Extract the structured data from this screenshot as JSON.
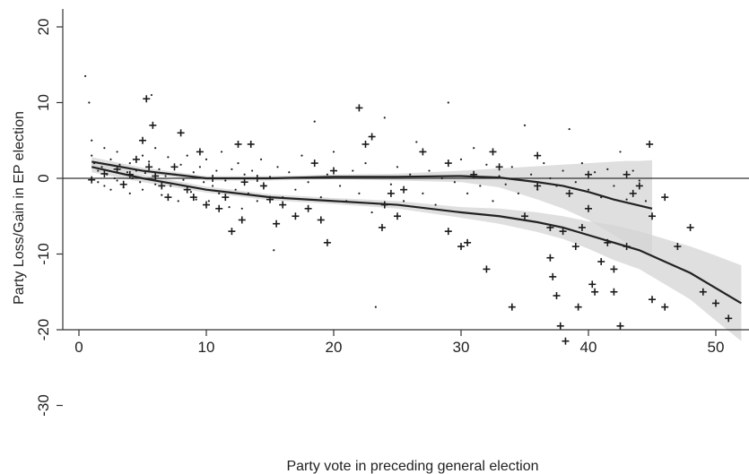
{
  "chart_data": {
    "type": "scatter",
    "title": "",
    "xlabel": "Party vote in preceding general election",
    "ylabel": "Party Loss/Gain in EP election",
    "xlim": [
      -1,
      52
    ],
    "ylim": [
      -32,
      22
    ],
    "xticks": [
      0,
      10,
      20,
      30,
      40,
      50
    ],
    "yticks": [
      20,
      10,
      0,
      -10,
      -20,
      -30
    ],
    "reference_line_y": 0,
    "grid": false,
    "legend": "none",
    "series": [
      {
        "marker": "plus",
        "points": [
          [
            1,
            -0.2
          ],
          [
            2,
            0.6
          ],
          [
            3,
            1.2
          ],
          [
            3.5,
            -0.8
          ],
          [
            4,
            0.5
          ],
          [
            4.5,
            2.5
          ],
          [
            5,
            5
          ],
          [
            5.3,
            10.5
          ],
          [
            5.5,
            1.5
          ],
          [
            5.8,
            7
          ],
          [
            6,
            0.3
          ],
          [
            6.5,
            -1
          ],
          [
            7,
            -2.5
          ],
          [
            7.5,
            1.5
          ],
          [
            8,
            6
          ],
          [
            8.5,
            -1.5
          ],
          [
            9,
            -2.5
          ],
          [
            9.5,
            3.5
          ],
          [
            10,
            -3.5
          ],
          [
            10.5,
            0
          ],
          [
            11,
            -4
          ],
          [
            11.5,
            -2.5
          ],
          [
            12,
            -7
          ],
          [
            12.5,
            4.5
          ],
          [
            12.8,
            -5.5
          ],
          [
            13,
            -0.5
          ],
          [
            13.5,
            4.5
          ],
          [
            14,
            0
          ],
          [
            14.5,
            -1
          ],
          [
            15,
            -2.8
          ],
          [
            15.5,
            -6
          ],
          [
            16,
            -3.5
          ],
          [
            17,
            -5
          ],
          [
            18,
            -4
          ],
          [
            18.5,
            2
          ],
          [
            19,
            -5.5
          ],
          [
            19.5,
            -8.5
          ],
          [
            20,
            1
          ],
          [
            22,
            9.3
          ],
          [
            22.5,
            4.5
          ],
          [
            23,
            5.5
          ],
          [
            23.8,
            -6.5
          ],
          [
            24,
            -3.5
          ],
          [
            24.5,
            -2
          ],
          [
            25,
            -5
          ],
          [
            25.5,
            -1.5
          ],
          [
            27,
            3.5
          ],
          [
            29,
            2
          ],
          [
            29,
            -7
          ],
          [
            30,
            -9
          ],
          [
            30.5,
            -8.5
          ],
          [
            31,
            0.5
          ],
          [
            32,
            -12
          ],
          [
            32.5,
            3.5
          ],
          [
            33,
            1.5
          ],
          [
            34,
            -17
          ],
          [
            35,
            -5
          ],
          [
            36,
            3
          ],
          [
            36,
            -1
          ],
          [
            37,
            -6.5
          ],
          [
            37,
            -10.5
          ],
          [
            37.2,
            -13
          ],
          [
            37.5,
            -15.5
          ],
          [
            37.8,
            -19.5
          ],
          [
            38,
            -7
          ],
          [
            38.2,
            -21.5
          ],
          [
            38.5,
            -2
          ],
          [
            39,
            -9
          ],
          [
            39.2,
            -17
          ],
          [
            39.5,
            -6.5
          ],
          [
            40,
            0.5
          ],
          [
            40,
            -4
          ],
          [
            40.3,
            -14
          ],
          [
            40.5,
            -15
          ],
          [
            41,
            -11
          ],
          [
            41.5,
            -8.5
          ],
          [
            42,
            -12
          ],
          [
            42,
            -15
          ],
          [
            42.5,
            -19.5
          ],
          [
            43,
            -9
          ],
          [
            43,
            0.5
          ],
          [
            43.5,
            -2
          ],
          [
            44,
            -1
          ],
          [
            44.8,
            4.5
          ],
          [
            45,
            -5
          ],
          [
            45,
            -16
          ],
          [
            46,
            -2.5
          ],
          [
            46,
            -17
          ],
          [
            47,
            -9
          ],
          [
            48,
            -6.5
          ],
          [
            49,
            -15
          ],
          [
            50,
            -16.5
          ],
          [
            51,
            -18.5
          ]
        ]
      },
      {
        "marker": "dot",
        "points": [
          [
            0.5,
            13.5
          ],
          [
            0.8,
            10
          ],
          [
            1,
            5
          ],
          [
            1,
            3
          ],
          [
            1.2,
            2
          ],
          [
            1.5,
            1
          ],
          [
            1.5,
            -0.5
          ],
          [
            1.8,
            1.5
          ],
          [
            2,
            -1
          ],
          [
            2,
            4
          ],
          [
            2.2,
            0.5
          ],
          [
            2.5,
            -1.5
          ],
          [
            2.5,
            2.5
          ],
          [
            2.8,
            0
          ],
          [
            3,
            3.5
          ],
          [
            3,
            -0.3
          ],
          [
            3.2,
            1.8
          ],
          [
            3.5,
            -1.2
          ],
          [
            3.8,
            0.8
          ],
          [
            4,
            2
          ],
          [
            4,
            -2
          ],
          [
            4.2,
            0
          ],
          [
            4.5,
            1
          ],
          [
            4.8,
            -0.5
          ],
          [
            5,
            3
          ],
          [
            5,
            -1.5
          ],
          [
            5.2,
            0.7
          ],
          [
            5.5,
            2.2
          ],
          [
            5.7,
            11
          ],
          [
            6,
            -0.8
          ],
          [
            6,
            4
          ],
          [
            6.3,
            1.2
          ],
          [
            6.5,
            -2.2
          ],
          [
            6.8,
            0.3
          ],
          [
            7,
            2.8
          ],
          [
            7.2,
            -1
          ],
          [
            7.5,
            0.5
          ],
          [
            7.8,
            -3
          ],
          [
            8,
            1.8
          ],
          [
            8.2,
            -0.2
          ],
          [
            8.5,
            3
          ],
          [
            8.8,
            -1.8
          ],
          [
            9,
            0.8
          ],
          [
            9.2,
            -2.8
          ],
          [
            9.5,
            1.5
          ],
          [
            9.8,
            -0.5
          ],
          [
            10,
            2.5
          ],
          [
            10.2,
            -3
          ],
          [
            10.5,
            -1
          ],
          [
            10.8,
            1
          ],
          [
            11,
            -2
          ],
          [
            11.2,
            3.5
          ],
          [
            11.5,
            -0.3
          ],
          [
            11.8,
            -3.8
          ],
          [
            12,
            1.2
          ],
          [
            12.3,
            -1.5
          ],
          [
            12.5,
            2
          ],
          [
            12.8,
            -4
          ],
          [
            13,
            0.5
          ],
          [
            13.3,
            -2
          ],
          [
            13.6,
            1
          ],
          [
            14,
            -3
          ],
          [
            14.3,
            2.5
          ],
          [
            14.6,
            -1
          ],
          [
            15,
            0.2
          ],
          [
            15.3,
            -9.5
          ],
          [
            15.6,
            1.5
          ],
          [
            16,
            -2.5
          ],
          [
            16.5,
            0.8
          ],
          [
            17,
            -1.5
          ],
          [
            17.5,
            3
          ],
          [
            18,
            -0.5
          ],
          [
            18.5,
            7.5
          ],
          [
            19,
            -2.5
          ],
          [
            19.5,
            0.5
          ],
          [
            20,
            3.5
          ],
          [
            20.5,
            -1
          ],
          [
            21,
            -3
          ],
          [
            21.5,
            1
          ],
          [
            22,
            -2
          ],
          [
            22.5,
            2
          ],
          [
            23,
            -4.5
          ],
          [
            23.3,
            -17
          ],
          [
            24,
            8
          ],
          [
            24.5,
            -0.8
          ],
          [
            25,
            1.5
          ],
          [
            25.5,
            -3
          ],
          [
            26,
            0.5
          ],
          [
            26.5,
            4.8
          ],
          [
            27,
            -2
          ],
          [
            27.5,
            1
          ],
          [
            28,
            -3.5
          ],
          [
            28.5,
            0
          ],
          [
            29,
            10
          ],
          [
            29.5,
            -0.5
          ],
          [
            30,
            2.5
          ],
          [
            30.5,
            -2
          ],
          [
            31,
            4
          ],
          [
            31.5,
            -1
          ],
          [
            32,
            1.8
          ],
          [
            32.5,
            -3
          ],
          [
            33,
            0.3
          ],
          [
            33.5,
            -0.8
          ],
          [
            34,
            1.5
          ],
          [
            34.5,
            -2
          ],
          [
            35,
            7
          ],
          [
            35.5,
            0.5
          ],
          [
            36,
            -1.5
          ],
          [
            36.5,
            2
          ],
          [
            37,
            0
          ],
          [
            37.5,
            -1
          ],
          [
            38,
            1
          ],
          [
            38.5,
            6.5
          ],
          [
            39,
            -0.5
          ],
          [
            39.5,
            2
          ],
          [
            40,
            -1.5
          ],
          [
            40.5,
            0.8
          ],
          [
            41,
            -2.5
          ],
          [
            41.5,
            1.2
          ],
          [
            42,
            -1
          ],
          [
            42.5,
            3.5
          ],
          [
            43,
            -2.8
          ],
          [
            43.5,
            1
          ],
          [
            44,
            -0.3
          ],
          [
            44.5,
            -3
          ]
        ]
      }
    ],
    "fits": [
      {
        "name": "",
        "x": [
          1,
          5,
          10,
          15,
          20,
          25,
          30,
          33,
          36,
          38,
          40,
          42,
          43,
          44,
          45
        ],
        "y": [
          2.2,
          1,
          0,
          0,
          0.2,
          0.2,
          0.3,
          0.1,
          -0.5,
          -1,
          -1.8,
          -2.8,
          -3.2,
          -3.6,
          -4
        ],
        "upper": [
          2.8,
          1.4,
          0.3,
          0.3,
          0.5,
          0.6,
          1,
          1.3,
          1.6,
          1.8,
          2,
          2.2,
          2.3,
          2.3,
          2.4
        ],
        "lower": [
          1.6,
          0.6,
          -0.3,
          -0.3,
          -0.1,
          -0.3,
          -0.5,
          -1.2,
          -2.8,
          -4,
          -5.5,
          -7.5,
          -8.5,
          -9.5,
          -10.5
        ]
      },
      {
        "name": "",
        "x": [
          1,
          5,
          10,
          15,
          20,
          25,
          30,
          33,
          36,
          38,
          40,
          42,
          44,
          46,
          48,
          50,
          52
        ],
        "y": [
          1.5,
          0,
          -1.5,
          -2.5,
          -3,
          -3.5,
          -4.5,
          -5,
          -5.8,
          -6.5,
          -7.5,
          -8.5,
          -9.5,
          -11,
          -12.5,
          -14.5,
          -16.5
        ],
        "upper": [
          2.2,
          0.5,
          -1.1,
          -2.1,
          -2.6,
          -3,
          -3.8,
          -4,
          -4.5,
          -5,
          -5.7,
          -6.2,
          -7,
          -8,
          -9,
          -10.2,
          -11.5
        ],
        "lower": [
          0.8,
          -0.5,
          -1.9,
          -2.9,
          -3.4,
          -4,
          -5.2,
          -6,
          -7.1,
          -8,
          -9.3,
          -10.8,
          -12,
          -14,
          -16,
          -18.8,
          -21.5
        ]
      }
    ]
  }
}
